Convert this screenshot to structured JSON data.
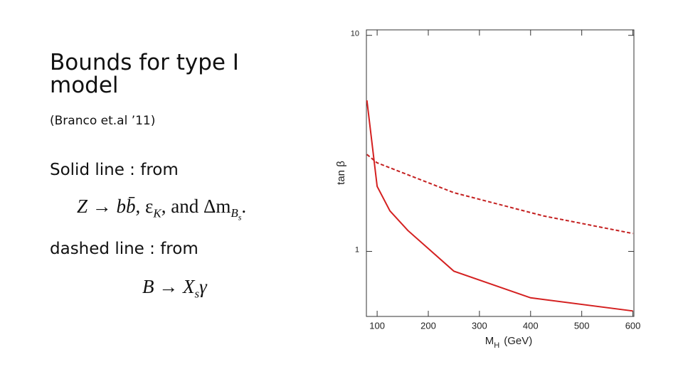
{
  "slide": {
    "title": [
      "Bounds for type I",
      "model"
    ],
    "citation": "(Branco et.al ’11)",
    "solid_note": "Solid line : from",
    "formula1": [
      "Z → b",
      "b̄",
      ", ε",
      "K",
      ", and Δm",
      "B",
      "s",
      "."
    ],
    "dashed_note": "dashed line : from",
    "formula2": [
      "B → X",
      "s",
      "γ"
    ]
  },
  "chart_data": {
    "type": "line",
    "y_label": "tan β",
    "x_label": [
      "M",
      "H",
      "(GeV)"
    ],
    "xlim": [
      79,
      602
    ],
    "xticks": [
      100,
      200,
      300,
      400,
      500,
      600
    ],
    "ylim": [
      0.5,
      10.6
    ],
    "yticks": [
      1,
      10
    ],
    "log_y": true,
    "series": [
      {
        "color": "#d42020",
        "dashed": false,
        "x": [
          80,
          100,
          125,
          160,
          250,
          400,
          600
        ],
        "values": [
          5.0,
          2.0,
          1.54,
          1.25,
          0.81,
          0.61,
          0.53
        ]
      },
      {
        "color": "#c42020",
        "dashed": true,
        "x": [
          80,
          100,
          250,
          425,
          600
        ],
        "values": [
          2.81,
          2.57,
          1.87,
          1.46,
          1.21
        ]
      }
    ]
  }
}
